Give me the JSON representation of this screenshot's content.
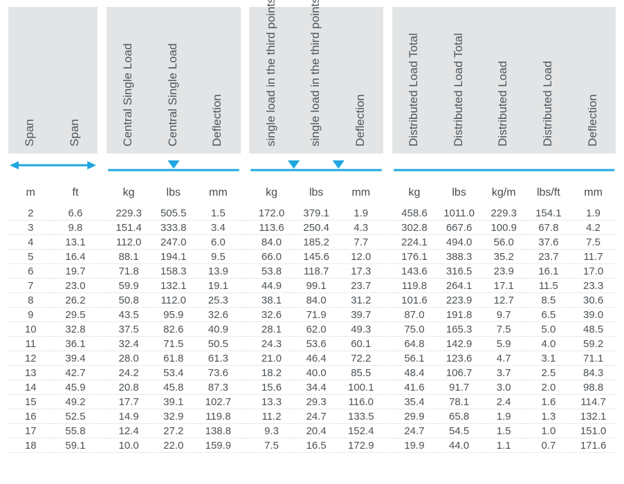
{
  "colors": {
    "header_bg": "#e3e4e5",
    "text": "#4a5055",
    "accent": "#1ea6e0",
    "row_dots": "#d3d6d8",
    "page_bg": "#ffffff"
  },
  "typography": {
    "header_fontsize_pt": 13,
    "units_fontsize_pt": 12,
    "data_fontsize_pt": 11,
    "font_family": "Arial"
  },
  "icons": {
    "span": "double-arrow-horizontal",
    "central": "beam-center-point-load",
    "third": "beam-two-third-point-loads",
    "distributed": "beam-uniform-load"
  },
  "headers": [
    {
      "key": "span_m",
      "label": "Span"
    },
    {
      "key": "span_ft",
      "label": "Span"
    },
    {
      "key": "csl_kg",
      "label": "Central Single Load"
    },
    {
      "key": "csl_lbs",
      "label": "Central Single Load"
    },
    {
      "key": "csl_def",
      "label": "Deflection"
    },
    {
      "key": "tpl_kg",
      "label": "single load in the third points"
    },
    {
      "key": "tpl_lbs",
      "label": "single load in the third points"
    },
    {
      "key": "tpl_def",
      "label": "Deflection"
    },
    {
      "key": "dl_tot_kg",
      "label": "Distributed Load Total"
    },
    {
      "key": "dl_tot_lbs",
      "label": "Distributed Load Total"
    },
    {
      "key": "dl_kgm",
      "label": "Distributed Load"
    },
    {
      "key": "dl_lbsft",
      "label": "Distributed Load"
    },
    {
      "key": "dl_def",
      "label": "Deflection"
    }
  ],
  "units": {
    "span_m": "m",
    "span_ft": "ft",
    "csl_kg": "kg",
    "csl_lbs": "lbs",
    "csl_def": "mm",
    "tpl_kg": "kg",
    "tpl_lbs": "lbs",
    "tpl_def": "mm",
    "dl_tot_kg": "kg",
    "dl_tot_lbs": "lbs",
    "dl_kgm": "kg/m",
    "dl_lbsft": "lbs/ft",
    "dl_def": "mm"
  },
  "rows": [
    {
      "span_m": "2",
      "span_ft": "6.6",
      "csl_kg": "229.3",
      "csl_lbs": "505.5",
      "csl_def": "1.5",
      "tpl_kg": "172.0",
      "tpl_lbs": "379.1",
      "tpl_def": "1.9",
      "dl_tot_kg": "458.6",
      "dl_tot_lbs": "1011.0",
      "dl_kgm": "229.3",
      "dl_lbsft": "154.1",
      "dl_def": "1.9"
    },
    {
      "span_m": "3",
      "span_ft": "9.8",
      "csl_kg": "151.4",
      "csl_lbs": "333.8",
      "csl_def": "3.4",
      "tpl_kg": "113.6",
      "tpl_lbs": "250.4",
      "tpl_def": "4.3",
      "dl_tot_kg": "302.8",
      "dl_tot_lbs": "667.6",
      "dl_kgm": "100.9",
      "dl_lbsft": "67.8",
      "dl_def": "4.2"
    },
    {
      "span_m": "4",
      "span_ft": "13.1",
      "csl_kg": "112.0",
      "csl_lbs": "247.0",
      "csl_def": "6.0",
      "tpl_kg": "84.0",
      "tpl_lbs": "185.2",
      "tpl_def": "7.7",
      "dl_tot_kg": "224.1",
      "dl_tot_lbs": "494.0",
      "dl_kgm": "56.0",
      "dl_lbsft": "37.6",
      "dl_def": "7.5"
    },
    {
      "span_m": "5",
      "span_ft": "16.4",
      "csl_kg": "88.1",
      "csl_lbs": "194.1",
      "csl_def": "9.5",
      "tpl_kg": "66.0",
      "tpl_lbs": "145.6",
      "tpl_def": "12.0",
      "dl_tot_kg": "176.1",
      "dl_tot_lbs": "388.3",
      "dl_kgm": "35.2",
      "dl_lbsft": "23.7",
      "dl_def": "11.7"
    },
    {
      "span_m": "6",
      "span_ft": "19.7",
      "csl_kg": "71.8",
      "csl_lbs": "158.3",
      "csl_def": "13.9",
      "tpl_kg": "53.8",
      "tpl_lbs": "118.7",
      "tpl_def": "17.3",
      "dl_tot_kg": "143.6",
      "dl_tot_lbs": "316.5",
      "dl_kgm": "23.9",
      "dl_lbsft": "16.1",
      "dl_def": "17.0"
    },
    {
      "span_m": "7",
      "span_ft": "23.0",
      "csl_kg": "59.9",
      "csl_lbs": "132.1",
      "csl_def": "19.1",
      "tpl_kg": "44.9",
      "tpl_lbs": "99.1",
      "tpl_def": "23.7",
      "dl_tot_kg": "119.8",
      "dl_tot_lbs": "264.1",
      "dl_kgm": "17.1",
      "dl_lbsft": "11.5",
      "dl_def": "23.3"
    },
    {
      "span_m": "8",
      "span_ft": "26.2",
      "csl_kg": "50.8",
      "csl_lbs": "112.0",
      "csl_def": "25.3",
      "tpl_kg": "38.1",
      "tpl_lbs": "84.0",
      "tpl_def": "31.2",
      "dl_tot_kg": "101.6",
      "dl_tot_lbs": "223.9",
      "dl_kgm": "12.7",
      "dl_lbsft": "8.5",
      "dl_def": "30.6"
    },
    {
      "span_m": "9",
      "span_ft": "29.5",
      "csl_kg": "43.5",
      "csl_lbs": "95.9",
      "csl_def": "32.6",
      "tpl_kg": "32.6",
      "tpl_lbs": "71.9",
      "tpl_def": "39.7",
      "dl_tot_kg": "87.0",
      "dl_tot_lbs": "191.8",
      "dl_kgm": "9.7",
      "dl_lbsft": "6.5",
      "dl_def": "39.0"
    },
    {
      "span_m": "10",
      "span_ft": "32.8",
      "csl_kg": "37.5",
      "csl_lbs": "82.6",
      "csl_def": "40.9",
      "tpl_kg": "28.1",
      "tpl_lbs": "62.0",
      "tpl_def": "49.3",
      "dl_tot_kg": "75.0",
      "dl_tot_lbs": "165.3",
      "dl_kgm": "7.5",
      "dl_lbsft": "5.0",
      "dl_def": "48.5"
    },
    {
      "span_m": "11",
      "span_ft": "36.1",
      "csl_kg": "32.4",
      "csl_lbs": "71.5",
      "csl_def": "50.5",
      "tpl_kg": "24.3",
      "tpl_lbs": "53.6",
      "tpl_def": "60.1",
      "dl_tot_kg": "64.8",
      "dl_tot_lbs": "142.9",
      "dl_kgm": "5.9",
      "dl_lbsft": "4.0",
      "dl_def": "59.2"
    },
    {
      "span_m": "12",
      "span_ft": "39.4",
      "csl_kg": "28.0",
      "csl_lbs": "61.8",
      "csl_def": "61.3",
      "tpl_kg": "21.0",
      "tpl_lbs": "46.4",
      "tpl_def": "72.2",
      "dl_tot_kg": "56.1",
      "dl_tot_lbs": "123.6",
      "dl_kgm": "4.7",
      "dl_lbsft": "3.1",
      "dl_def": "71.1"
    },
    {
      "span_m": "13",
      "span_ft": "42.7",
      "csl_kg": "24.2",
      "csl_lbs": "53.4",
      "csl_def": "73.6",
      "tpl_kg": "18.2",
      "tpl_lbs": "40.0",
      "tpl_def": "85.5",
      "dl_tot_kg": "48.4",
      "dl_tot_lbs": "106.7",
      "dl_kgm": "3.7",
      "dl_lbsft": "2.5",
      "dl_def": "84.3"
    },
    {
      "span_m": "14",
      "span_ft": "45.9",
      "csl_kg": "20.8",
      "csl_lbs": "45.8",
      "csl_def": "87.3",
      "tpl_kg": "15.6",
      "tpl_lbs": "34.4",
      "tpl_def": "100.1",
      "dl_tot_kg": "41.6",
      "dl_tot_lbs": "91.7",
      "dl_kgm": "3.0",
      "dl_lbsft": "2.0",
      "dl_def": "98.8"
    },
    {
      "span_m": "15",
      "span_ft": "49.2",
      "csl_kg": "17.7",
      "csl_lbs": "39.1",
      "csl_def": "102.7",
      "tpl_kg": "13.3",
      "tpl_lbs": "29.3",
      "tpl_def": "116.0",
      "dl_tot_kg": "35.4",
      "dl_tot_lbs": "78.1",
      "dl_kgm": "2.4",
      "dl_lbsft": "1.6",
      "dl_def": "114.7"
    },
    {
      "span_m": "16",
      "span_ft": "52.5",
      "csl_kg": "14.9",
      "csl_lbs": "32.9",
      "csl_def": "119.8",
      "tpl_kg": "11.2",
      "tpl_lbs": "24.7",
      "tpl_def": "133.5",
      "dl_tot_kg": "29.9",
      "dl_tot_lbs": "65.8",
      "dl_kgm": "1.9",
      "dl_lbsft": "1.3",
      "dl_def": "132.1"
    },
    {
      "span_m": "17",
      "span_ft": "55.8",
      "csl_kg": "12.4",
      "csl_lbs": "27.2",
      "csl_def": "138.8",
      "tpl_kg": "9.3",
      "tpl_lbs": "20.4",
      "tpl_def": "152.4",
      "dl_tot_kg": "24.7",
      "dl_tot_lbs": "54.5",
      "dl_kgm": "1.5",
      "dl_lbsft": "1.0",
      "dl_def": "151.0"
    },
    {
      "span_m": "18",
      "span_ft": "59.1",
      "csl_kg": "10.0",
      "csl_lbs": "22.0",
      "csl_def": "159.9",
      "tpl_kg": "7.5",
      "tpl_lbs": "16.5",
      "tpl_def": "172.9",
      "dl_tot_kg": "19.9",
      "dl_tot_lbs": "44.0",
      "dl_kgm": "1.1",
      "dl_lbsft": "0.7",
      "dl_def": "171.6"
    }
  ]
}
